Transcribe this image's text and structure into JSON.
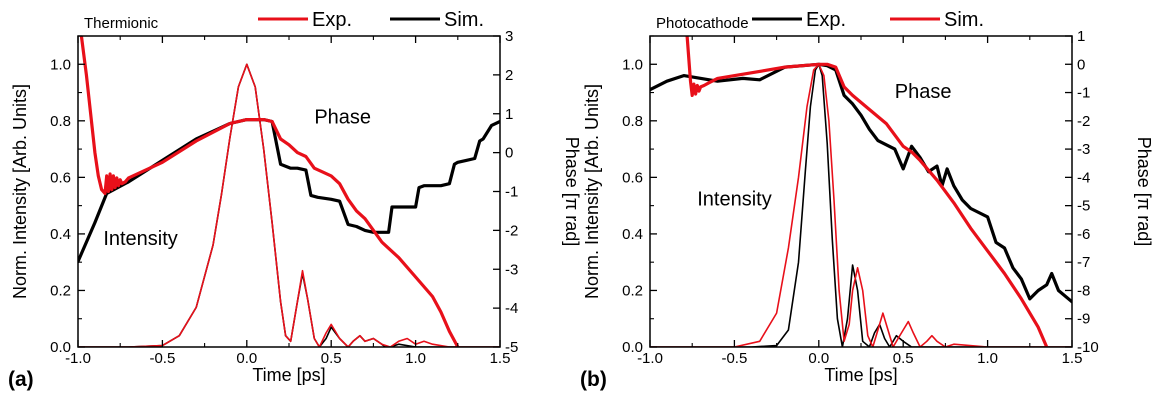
{
  "chart_data": [
    {
      "type": "line",
      "panel_label": "(a)",
      "inset_title": "Thermionic",
      "xlabel": "Time [ps]",
      "ylabel": "Norm. Intensity [Arb. Units]",
      "y2label": "Phase [π rad]",
      "xlim": [
        -1.0,
        1.5
      ],
      "ylim": [
        0.0,
        1.1
      ],
      "y2lim": [
        -5,
        3
      ],
      "xticks": [
        "-1.0",
        "-0.5",
        "0.0",
        "0.5",
        "1.0",
        "1.5"
      ],
      "yticks": [
        "0.0",
        "0.2",
        "0.4",
        "0.6",
        "0.8",
        "1.0"
      ],
      "y2ticks": [
        "3",
        "2",
        "1",
        "0",
        "-1",
        "-2",
        "-3",
        "-4",
        "-5"
      ],
      "grid": false,
      "legend": {
        "placement": "top",
        "entries": [
          {
            "name": "Exp.",
            "color": "#e8101a"
          },
          {
            "name": "Sim.",
            "color": "#000000"
          }
        ]
      },
      "annotations": [
        {
          "text": "Phase",
          "x": 0.4,
          "y": 0.79
        },
        {
          "text": "Intensity",
          "x": -0.85,
          "y": 0.36
        }
      ],
      "series": [
        {
          "role": "intensity",
          "legend_ref": "Sim.",
          "color": "#000000",
          "x": [
            -1.0,
            -0.7,
            -0.5,
            -0.4,
            -0.3,
            -0.2,
            -0.15,
            -0.1,
            -0.05,
            0.0,
            0.05,
            0.1,
            0.15,
            0.2,
            0.23,
            0.26,
            0.3,
            0.33,
            0.36,
            0.4,
            0.43,
            0.47,
            0.5,
            0.55,
            0.6,
            0.63,
            0.67,
            0.7,
            0.75,
            0.8,
            0.82,
            0.85,
            0.9,
            1.0,
            1.2,
            1.5
          ],
          "values": [
            0,
            0,
            0.005,
            0.04,
            0.14,
            0.36,
            0.54,
            0.74,
            0.92,
            1.0,
            0.92,
            0.7,
            0.44,
            0.16,
            0.04,
            0.02,
            0.16,
            0.26,
            0.17,
            0.03,
            0.0,
            0.03,
            0.07,
            0.03,
            0.0,
            0.02,
            0.04,
            0.02,
            0.03,
            0.01,
            0.0,
            0.0,
            0.01,
            0,
            0,
            0
          ]
        },
        {
          "role": "intensity",
          "legend_ref": "Exp.",
          "color": "#e8101a",
          "x": [
            -1.0,
            -0.7,
            -0.5,
            -0.4,
            -0.3,
            -0.2,
            -0.15,
            -0.1,
            -0.05,
            0.0,
            0.05,
            0.1,
            0.15,
            0.2,
            0.23,
            0.26,
            0.3,
            0.33,
            0.36,
            0.4,
            0.43,
            0.47,
            0.5,
            0.55,
            0.6,
            0.63,
            0.67,
            0.7,
            0.75,
            0.8,
            0.85,
            0.9,
            0.95,
            1.0,
            1.05,
            1.1,
            1.2,
            1.5
          ],
          "values": [
            0,
            0,
            0.005,
            0.04,
            0.14,
            0.36,
            0.54,
            0.74,
            0.92,
            1.0,
            0.92,
            0.7,
            0.44,
            0.16,
            0.04,
            0.02,
            0.16,
            0.27,
            0.17,
            0.03,
            0.0,
            0.05,
            0.08,
            0.03,
            0.0,
            0.02,
            0.04,
            0.02,
            0.03,
            0.01,
            0.0,
            0.02,
            0.03,
            0.01,
            0.02,
            0.01,
            0,
            0
          ]
        },
        {
          "role": "phase",
          "legend_ref": "Sim.",
          "color": "#000000",
          "x": [
            -1.0,
            -0.9,
            -0.83,
            -0.7,
            -0.5,
            -0.3,
            -0.1,
            0.0,
            0.1,
            0.15,
            0.2,
            0.23,
            0.26,
            0.3,
            0.35,
            0.38,
            0.42,
            0.5,
            0.55,
            0.6,
            0.65,
            0.7,
            0.75,
            0.8,
            0.84,
            0.86,
            0.9,
            1.0,
            1.02,
            1.05,
            1.1,
            1.15,
            1.2,
            1.23,
            1.25,
            1.3,
            1.35,
            1.38,
            1.4,
            1.45,
            1.5
          ],
          "values": [
            -2.8,
            -1.8,
            -1.05,
            -0.75,
            -0.2,
            0.35,
            0.75,
            0.85,
            0.85,
            0.8,
            -0.3,
            -0.35,
            -0.4,
            -0.4,
            -0.45,
            -1.1,
            -1.15,
            -1.2,
            -1.25,
            -1.85,
            -1.9,
            -2.0,
            -2.05,
            -2.05,
            -2.05,
            -1.4,
            -1.4,
            -1.4,
            -0.9,
            -0.85,
            -0.85,
            -0.85,
            -0.8,
            -0.3,
            -0.25,
            -0.2,
            -0.15,
            0.3,
            0.35,
            0.7,
            0.8
          ]
        },
        {
          "role": "phase",
          "legend_ref": "Exp.",
          "color": "#e8101a",
          "x": [
            -0.98,
            -0.95,
            -0.92,
            -0.9,
            -0.88,
            -0.86,
            -0.84,
            -0.83,
            -0.82,
            -0.81,
            -0.8,
            -0.79,
            -0.78,
            -0.77,
            -0.76,
            -0.75,
            -0.74,
            -0.72,
            -0.7,
            -0.5,
            -0.3,
            -0.1,
            0.0,
            0.1,
            0.15,
            0.2,
            0.25,
            0.3,
            0.35,
            0.4,
            0.45,
            0.5,
            0.55,
            0.6,
            0.65,
            0.7,
            0.8,
            0.9,
            1.0,
            1.1,
            1.15,
            1.2,
            1.25
          ],
          "values": [
            3.0,
            2.0,
            0.8,
            0.0,
            -0.6,
            -0.95,
            -1.05,
            -0.6,
            -1.0,
            -0.55,
            -0.95,
            -0.6,
            -0.9,
            -0.65,
            -0.85,
            -0.7,
            -0.8,
            -0.75,
            -0.65,
            -0.25,
            0.3,
            0.75,
            0.85,
            0.85,
            0.8,
            0.35,
            0.2,
            0.0,
            -0.1,
            -0.4,
            -0.5,
            -0.6,
            -0.8,
            -1.2,
            -1.5,
            -1.7,
            -2.3,
            -2.7,
            -3.2,
            -3.7,
            -4.1,
            -4.6,
            -5.0
          ]
        }
      ]
    },
    {
      "type": "line",
      "panel_label": "(b)",
      "inset_title": "Photocathode",
      "xlabel": "Time [ps]",
      "ylabel": "Norm. Intensity [Arb. Units]",
      "y2label": "Phase [π rad]",
      "xlim": [
        -1.0,
        1.5
      ],
      "ylim": [
        0.0,
        1.1
      ],
      "y2lim": [
        -10,
        1
      ],
      "xticks": [
        "-1.0",
        "-0.5",
        "0.0",
        "0.5",
        "1.0",
        "1.5"
      ],
      "yticks": [
        "0.0",
        "0.2",
        "0.4",
        "0.6",
        "0.8",
        "1.0"
      ],
      "y2ticks": [
        "1",
        "0",
        "-1",
        "-2",
        "-3",
        "-4",
        "-5",
        "-6",
        "-7",
        "-8",
        "-9",
        "-10"
      ],
      "grid": false,
      "legend": {
        "placement": "top",
        "entries": [
          {
            "name": "Exp.",
            "color": "#000000"
          },
          {
            "name": "Sim.",
            "color": "#e8101a"
          }
        ]
      },
      "annotations": [
        {
          "text": "Phase",
          "x": 0.45,
          "y": 0.88
        },
        {
          "text": "Intensity",
          "x": -0.72,
          "y": 0.5
        }
      ],
      "series": [
        {
          "role": "intensity",
          "legend_ref": "Exp.",
          "color": "#000000",
          "x": [
            -1.0,
            -0.4,
            -0.25,
            -0.18,
            -0.12,
            -0.08,
            -0.05,
            -0.02,
            0.0,
            0.02,
            0.05,
            0.08,
            0.11,
            0.14,
            0.17,
            0.2,
            0.23,
            0.26,
            0.3,
            0.33,
            0.36,
            0.39,
            0.42,
            0.46,
            0.5,
            0.55,
            1.0,
            1.5
          ],
          "values": [
            0,
            0,
            0.005,
            0.06,
            0.3,
            0.62,
            0.85,
            0.98,
            1.0,
            0.96,
            0.72,
            0.38,
            0.1,
            0.0,
            0.1,
            0.29,
            0.2,
            0.02,
            0.0,
            0.05,
            0.08,
            0.03,
            0.0,
            0.04,
            0.02,
            0,
            0,
            0
          ]
        },
        {
          "role": "intensity",
          "legend_ref": "Sim.",
          "color": "#e8101a",
          "x": [
            -1.0,
            -0.5,
            -0.35,
            -0.25,
            -0.18,
            -0.12,
            -0.07,
            -0.03,
            0.0,
            0.03,
            0.06,
            0.09,
            0.12,
            0.15,
            0.18,
            0.2,
            0.23,
            0.26,
            0.29,
            0.32,
            0.35,
            0.38,
            0.41,
            0.44,
            0.47,
            0.5,
            0.53,
            0.56,
            0.6,
            0.64,
            0.67,
            0.7,
            0.75,
            0.8,
            1.0,
            1.5
          ],
          "values": [
            0,
            0,
            0.02,
            0.12,
            0.35,
            0.6,
            0.85,
            0.98,
            1.0,
            0.96,
            0.8,
            0.52,
            0.2,
            0.02,
            0.08,
            0.2,
            0.28,
            0.2,
            0.04,
            0.0,
            0.06,
            0.12,
            0.06,
            0.0,
            0.03,
            0.06,
            0.09,
            0.05,
            0.0,
            0.02,
            0.04,
            0.02,
            0.0,
            0.01,
            0,
            0
          ]
        },
        {
          "role": "phase",
          "legend_ref": "Exp.",
          "color": "#000000",
          "x": [
            -1.0,
            -0.9,
            -0.8,
            -0.6,
            -0.45,
            -0.35,
            -0.2,
            0.0,
            0.05,
            0.1,
            0.15,
            0.2,
            0.25,
            0.3,
            0.35,
            0.4,
            0.45,
            0.5,
            0.55,
            0.6,
            0.65,
            0.7,
            0.73,
            0.76,
            0.8,
            0.85,
            0.9,
            1.0,
            1.05,
            1.1,
            1.15,
            1.2,
            1.25,
            1.3,
            1.35,
            1.38,
            1.42,
            1.5
          ],
          "values": [
            -0.9,
            -0.6,
            -0.4,
            -0.6,
            -0.5,
            -0.55,
            -0.1,
            0.0,
            -0.05,
            -0.2,
            -1.1,
            -1.4,
            -1.8,
            -2.3,
            -2.7,
            -2.85,
            -3.0,
            -3.7,
            -2.9,
            -3.3,
            -3.8,
            -3.6,
            -4.3,
            -3.7,
            -4.3,
            -4.8,
            -5.1,
            -5.4,
            -6.3,
            -6.5,
            -7.2,
            -7.6,
            -8.3,
            -8.0,
            -7.8,
            -7.4,
            -8.0,
            -8.4
          ]
        },
        {
          "role": "phase",
          "legend_ref": "Sim.",
          "color": "#e8101a",
          "x": [
            -0.78,
            -0.76,
            -0.75,
            -0.74,
            -0.73,
            -0.72,
            -0.71,
            -0.7,
            -0.68,
            -0.65,
            -0.6,
            -0.4,
            -0.2,
            0.0,
            0.05,
            0.1,
            0.15,
            0.2,
            0.3,
            0.4,
            0.5,
            0.55,
            0.6,
            0.7,
            0.8,
            0.9,
            1.0,
            1.1,
            1.2,
            1.3,
            1.35
          ],
          "values": [
            1.0,
            -0.6,
            -1.1,
            -0.7,
            -1.05,
            -0.75,
            -0.95,
            -0.8,
            -0.75,
            -0.65,
            -0.5,
            -0.3,
            -0.1,
            0.0,
            0.0,
            -0.1,
            -0.8,
            -1.1,
            -1.6,
            -2.1,
            -2.9,
            -3.1,
            -3.4,
            -4.1,
            -4.9,
            -5.8,
            -6.6,
            -7.4,
            -8.3,
            -9.3,
            -10.0
          ]
        }
      ]
    }
  ]
}
